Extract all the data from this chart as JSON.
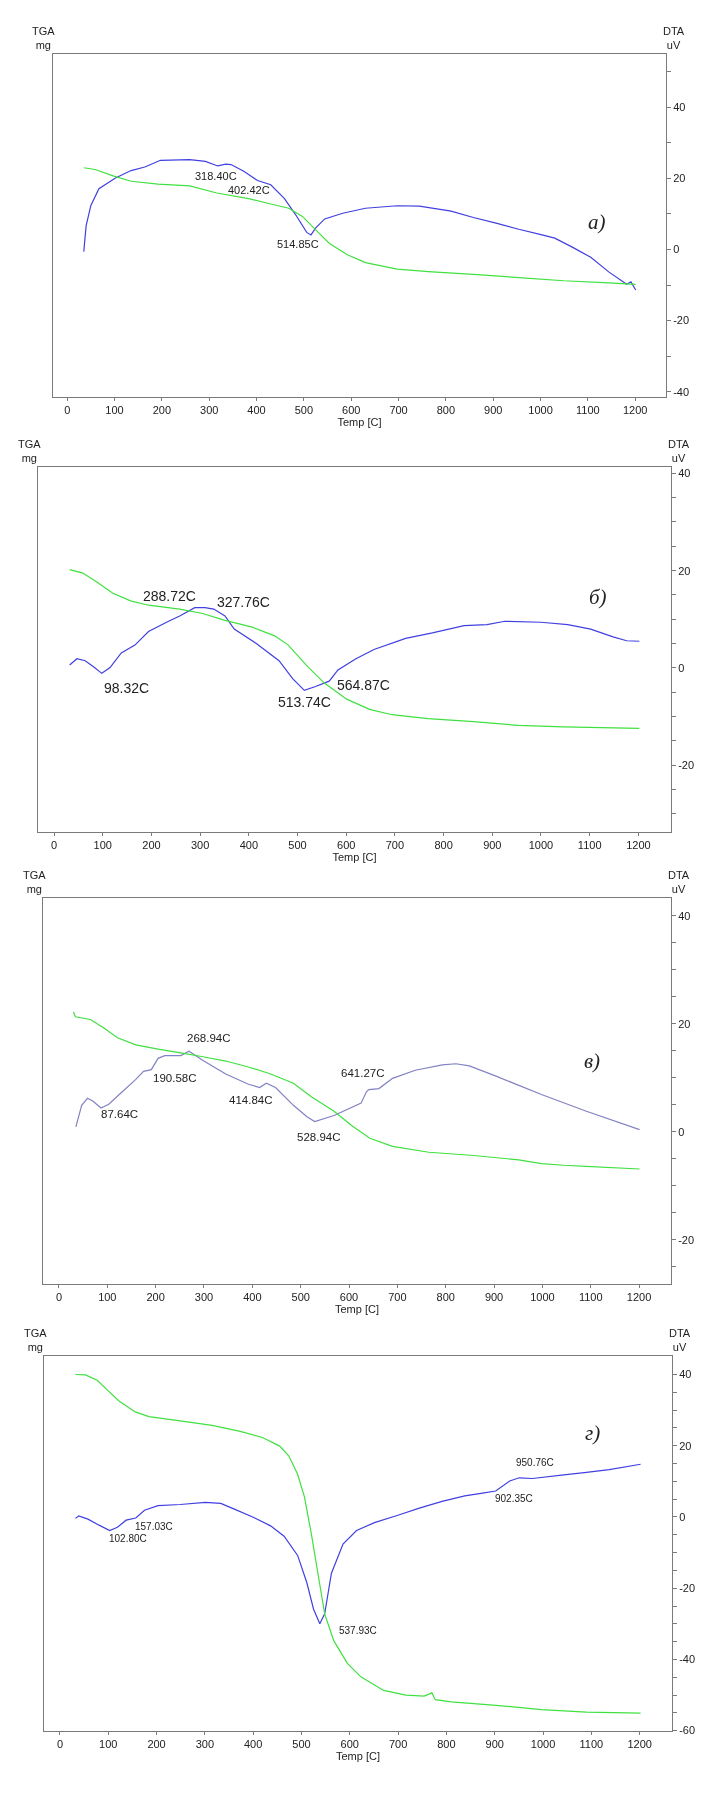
{
  "chart_data": [
    {
      "type": "line",
      "title": "а)",
      "xlabel": "Temp [C]",
      "ylabel": "DTA\nuV",
      "y2label": "TGA\nmg",
      "xlim": [
        -30,
        1265
      ],
      "xticks": [
        0,
        100,
        200,
        300,
        400,
        500,
        600,
        700,
        800,
        900,
        1000,
        1100,
        1200
      ],
      "ylim": [
        -41.5,
        55
      ],
      "yticks": [
        {
          "value": 50,
          "label": null
        },
        40,
        {
          "value": 30,
          "label": null
        },
        20,
        {
          "value": 10,
          "label": null
        },
        0,
        {
          "value": -10,
          "label": null
        },
        -20,
        {
          "value": -30,
          "label": null
        },
        -40
      ],
      "grid": false,
      "series": [
        {
          "color": "#4040e0",
          "x": [
            35,
            40,
            50,
            67,
            102,
            135,
            164,
            197,
            259,
            292,
            318,
            335,
            346,
            373,
            402,
            430,
            459,
            482,
            506,
            515,
            525,
            544,
            582,
            630,
            697,
            744,
            811,
            858,
            906,
            954,
            1001,
            1030,
            1068,
            1106,
            1144,
            1182,
            1191,
            1201
          ],
          "values": [
            -0.6,
            6.7,
            12.4,
            17.1,
            20.1,
            22.2,
            23.2,
            25.1,
            25.3,
            24.8,
            23.5,
            24.0,
            23.9,
            22.0,
            19.4,
            18.2,
            14.3,
            9.9,
            4.8,
            4.1,
            6.1,
            8.6,
            10.2,
            11.6,
            12.3,
            12.2,
            10.8,
            9.0,
            7.4,
            5.7,
            4.2,
            3.2,
            0.6,
            -2.2,
            -6.3,
            -9.8,
            -9.1,
            -11.4
          ]
        },
        {
          "color": "#40e040",
          "x": [
            35,
            59,
            97,
            135,
            192,
            259,
            316,
            383,
            430,
            468,
            497,
            525,
            554,
            592,
            630,
            697,
            763,
            858,
            954,
            1049,
            1144,
            1201
          ],
          "values": [
            23.0,
            22.5,
            20.7,
            19.2,
            18.4,
            17.9,
            15.9,
            14.3,
            12.8,
            11.6,
            9.3,
            5.5,
            1.7,
            -1.5,
            -3.7,
            -5.5,
            -6.2,
            -7.0,
            -7.9,
            -8.8,
            -9.4,
            -9.8
          ]
        }
      ],
      "annotations": [
        {
          "text": "318.40C",
          "x": 318.4,
          "y": 23.5
        },
        {
          "text": "402.42C",
          "x": 402.42,
          "y": 19.4
        },
        {
          "text": "514.85C",
          "x": 514.85,
          "y": 4.1
        }
      ]
    },
    {
      "type": "line",
      "title": "б)",
      "xlabel": "Temp [C]",
      "ylabel": "DTA\nuV",
      "y2label": "TGA\nmg",
      "xlim": [
        -33,
        1267
      ],
      "xticks": [
        0,
        100,
        200,
        300,
        400,
        500,
        600,
        700,
        800,
        900,
        1000,
        1100,
        1200
      ],
      "ylim": [
        -33.7,
        41.3
      ],
      "yticks": [
        40,
        {
          "value": 35,
          "label": null
        },
        {
          "value": 30,
          "label": null
        },
        {
          "value": 25,
          "label": null
        },
        20,
        {
          "value": 15,
          "label": null
        },
        {
          "value": 10,
          "label": null
        },
        {
          "value": 5,
          "label": null
        },
        0,
        {
          "value": -5,
          "label": null
        },
        {
          "value": -10,
          "label": null
        },
        {
          "value": -15,
          "label": null
        },
        -20,
        {
          "value": -25,
          "label": null
        },
        {
          "value": -30,
          "label": null
        }
      ],
      "grid": false,
      "series": [
        {
          "color": "#4040e0",
          "x": [
            32,
            47,
            64,
            83,
            98,
            115,
            138,
            166,
            194,
            231,
            258,
            289,
            310,
            328,
            351,
            370,
            416,
            462,
            490,
            514,
            537,
            565,
            583,
            620,
            657,
            722,
            777,
            842,
            889,
            926,
            1000,
            1055,
            1102,
            1148,
            1176,
            1202
          ],
          "values": [
            0.6,
            1.9,
            1.5,
            0.1,
            -1.1,
            0.1,
            3.1,
            4.7,
            7.5,
            9.4,
            10.7,
            12.4,
            12.4,
            12.1,
            10.7,
            8.0,
            5.0,
            1.5,
            -2.2,
            -4.6,
            -3.8,
            -2.7,
            -0.4,
            1.9,
            3.8,
            6.1,
            7.2,
            8.7,
            8.9,
            9.6,
            9.4,
            8.9,
            8.0,
            6.4,
            5.6,
            5.5
          ]
        },
        {
          "color": "#40e040",
          "x": [
            32,
            59,
            87,
            120,
            157,
            194,
            258,
            305,
            351,
            407,
            453,
            481,
            518,
            555,
            601,
            648,
            694,
            768,
            861,
            953,
            1046,
            1202
          ],
          "values": [
            20.2,
            19.5,
            17.7,
            15.4,
            13.8,
            12.9,
            12.1,
            11.2,
            9.8,
            8.4,
            6.6,
            4.7,
            0.6,
            -3.1,
            -6.4,
            -8.5,
            -9.6,
            -10.4,
            -11.0,
            -11.8,
            -12.1,
            -12.4
          ]
        }
      ],
      "annotations": [
        {
          "text": "98.32C",
          "x": 98.32,
          "y": -1.1
        },
        {
          "text": "288.72C",
          "x": 288.72,
          "y": 12.4
        },
        {
          "text": "327.76C",
          "x": 327.76,
          "y": 12.1
        },
        {
          "text": "513.74C",
          "x": 513.74,
          "y": -4.6
        },
        {
          "text": "564.87C",
          "x": 564.87,
          "y": -2.7
        }
      ]
    },
    {
      "type": "line",
      "title": "в)",
      "xlabel": "Temp [C]",
      "ylabel": "DTA\nuV",
      "y2label": "TGA\nmg",
      "xlim": [
        -33,
        1266
      ],
      "xticks": [
        0,
        100,
        200,
        300,
        400,
        500,
        600,
        700,
        800,
        900,
        1000,
        1100,
        1200
      ],
      "ylim": [
        -28.2,
        43.3
      ],
      "yticks": [
        40,
        {
          "value": 35,
          "label": null
        },
        {
          "value": 30,
          "label": null
        },
        {
          "value": 25,
          "label": null
        },
        20,
        {
          "value": 15,
          "label": null
        },
        {
          "value": 10,
          "label": null
        },
        {
          "value": 5,
          "label": null
        },
        0,
        {
          "value": -5,
          "label": null
        },
        {
          "value": -10,
          "label": null
        },
        {
          "value": -15,
          "label": null
        },
        -20,
        {
          "value": -25,
          "label": null
        }
      ],
      "grid": false,
      "series": [
        {
          "color": "#8282c4",
          "x": [
            35,
            47,
            59,
            70,
            87,
            103,
            131,
            159,
            175,
            191,
            205,
            219,
            252,
            269,
            298,
            345,
            392,
            415,
            429,
            448,
            485,
            513,
            529,
            569,
            625,
            636,
            641,
            662,
            690,
            737,
            793,
            821,
            849,
            904,
            998,
            1091,
            1201
          ],
          "values": [
            0.9,
            4.9,
            6.2,
            5.7,
            4.4,
            5.1,
            7.4,
            9.7,
            11.2,
            11.5,
            13.6,
            14.1,
            14.1,
            14.9,
            13.2,
            10.7,
            8.8,
            8.2,
            9.0,
            8.2,
            4.9,
            2.8,
            1.9,
            3.0,
            5.3,
            7.4,
            7.8,
            8.0,
            9.9,
            11.4,
            12.4,
            12.6,
            12.2,
            10.3,
            6.9,
            3.8,
            0.4
          ]
        },
        {
          "color": "#40e040",
          "x": [
            30,
            34,
            65,
            93,
            121,
            159,
            205,
            252,
            298,
            345,
            392,
            438,
            485,
            522,
            569,
            606,
            643,
            690,
            765,
            858,
            951,
            998,
            1044,
            1091,
            1201
          ],
          "values": [
            22.2,
            21.3,
            20.8,
            19.2,
            17.4,
            16.1,
            15.3,
            14.6,
            13.9,
            13.1,
            12.0,
            10.7,
            9.0,
            6.5,
            3.8,
            1.1,
            -1.2,
            -2.7,
            -3.8,
            -4.4,
            -5.2,
            -5.9,
            -6.2,
            -6.4,
            -6.9
          ]
        }
      ],
      "annotations": [
        {
          "text": "87.64C",
          "x": 87.64,
          "y": 4.4
        },
        {
          "text": "190.58C",
          "x": 190.58,
          "y": 11.5
        },
        {
          "text": "268.94C",
          "x": 268.94,
          "y": 14.9
        },
        {
          "text": "414.84C",
          "x": 414.84,
          "y": 8.2
        },
        {
          "text": "528.94C",
          "x": 528.94,
          "y": 1.9
        },
        {
          "text": "641.27C",
          "x": 641.27,
          "y": 7.8
        }
      ]
    },
    {
      "type": "line",
      "title": "г)",
      "xlabel": "Temp [C]",
      "ylabel": "DTA\nuV",
      "y2label": "TGA\nmg",
      "xlim": [
        -33,
        1267
      ],
      "xticks": [
        0,
        100,
        200,
        300,
        400,
        500,
        600,
        700,
        800,
        900,
        1000,
        1100,
        1200
      ],
      "ylim": [
        -60.1,
        45.2
      ],
      "yticks": [
        40,
        {
          "value": 35,
          "label": null
        },
        {
          "value": 30,
          "label": null
        },
        {
          "value": 25,
          "label": null
        },
        20,
        {
          "value": 15,
          "label": null
        },
        {
          "value": 10,
          "label": null
        },
        {
          "value": 5,
          "label": null
        },
        0,
        {
          "value": -5,
          "label": null
        },
        {
          "value": -10,
          "label": null
        },
        {
          "value": -15,
          "label": null
        },
        -20,
        {
          "value": -25,
          "label": null
        },
        {
          "value": -30,
          "label": null
        },
        {
          "value": -35,
          "label": null
        },
        -40,
        {
          "value": -45,
          "label": null
        },
        {
          "value": -50,
          "label": null
        },
        {
          "value": -55,
          "label": null
        },
        -60
      ],
      "grid": false,
      "series": [
        {
          "color": "#4040e0",
          "x": [
            32,
            39,
            58,
            81,
            103,
            119,
            137,
            157,
            175,
            203,
            249,
            301,
            333,
            361,
            399,
            436,
            464,
            492,
            511,
            525,
            538,
            548,
            562,
            586,
            614,
            651,
            698,
            744,
            791,
            838,
            875,
            902,
            931,
            951,
            978,
            1043,
            1090,
            1137,
            1202
          ],
          "values": [
            -0.4,
            0.3,
            -0.6,
            -2.3,
            -3.8,
            -2.9,
            -0.9,
            -0.3,
            1.9,
            3.2,
            3.5,
            4.1,
            3.8,
            2.2,
            0,
            -2.5,
            -5.4,
            -10.8,
            -18.4,
            -25.9,
            -30.0,
            -27.2,
            -15.8,
            -7.6,
            -3.8,
            -1.6,
            0.4,
            2.5,
            4.4,
            5.9,
            6.7,
            7.3,
            10.1,
            11.0,
            10.8,
            11.8,
            12.5,
            13.3,
            14.8
          ]
        },
        {
          "color": "#40e040",
          "x": [
            32,
            53,
            77,
            100,
            123,
            156,
            184,
            249,
            315,
            371,
            418,
            455,
            474,
            492,
            506,
            520,
            534,
            548,
            567,
            595,
            623,
            670,
            716,
            754,
            770,
            777,
            810,
            903,
            997,
            1090,
            1202
          ],
          "values": [
            40.0,
            39.9,
            38.4,
            35.4,
            32.5,
            29.5,
            28.2,
            27.0,
            25.7,
            24.1,
            22.4,
            19.9,
            17.1,
            12.0,
            5.7,
            -4.4,
            -15.8,
            -27.2,
            -34.8,
            -41.1,
            -44.9,
            -48.7,
            -50.0,
            -50.3,
            -49.4,
            -51.3,
            -51.9,
            -52.9,
            -54.1,
            -54.8,
            -55.1
          ]
        }
      ],
      "annotations": [
        {
          "text": "102.80C",
          "x": 102.8,
          "y": -3.8
        },
        {
          "text": "157.03C",
          "x": 157.03,
          "y": -0.3
        },
        {
          "text": "537.93C",
          "x": 537.93,
          "y": -30.0
        },
        {
          "text": "902.35C",
          "x": 902.35,
          "y": 7.3
        },
        {
          "text": "950.76C",
          "x": 950.76,
          "y": 11.0
        }
      ]
    }
  ]
}
